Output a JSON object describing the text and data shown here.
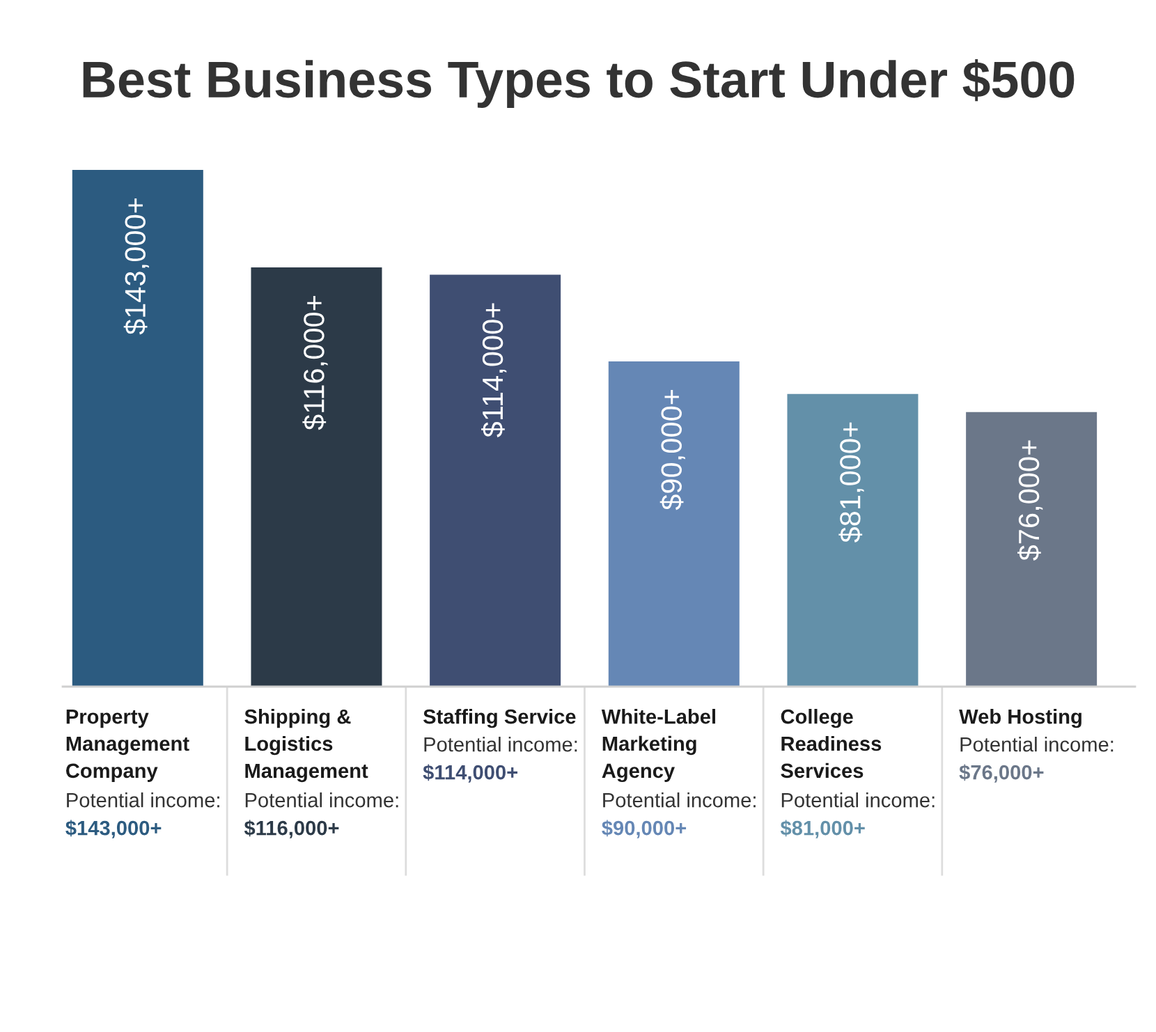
{
  "chart_data": {
    "type": "bar",
    "title": "Best Business Types to Start Under $500",
    "categories": [
      "Property Management Company",
      "Shipping & Logistics Management",
      "Staffing Service",
      "White-Label Marketing Agency",
      "College Readiness Services",
      "Web Hosting"
    ],
    "values": [
      143000,
      116000,
      114000,
      90000,
      81000,
      76000
    ],
    "colors": [
      "#2c5b80",
      "#2c3a48",
      "#3f4e72",
      "#6587b5",
      "#6390a9",
      "#6b7789"
    ],
    "value_labels": [
      "$143,000+",
      "$116,000+",
      "$114,000+",
      "$90,000+",
      "$81,000+",
      "$76,000+"
    ],
    "annotations": [
      "Potential income:",
      "Potential income:",
      "Potential income:",
      "Potential income:",
      "Potential income:",
      "Potential income:"
    ]
  }
}
